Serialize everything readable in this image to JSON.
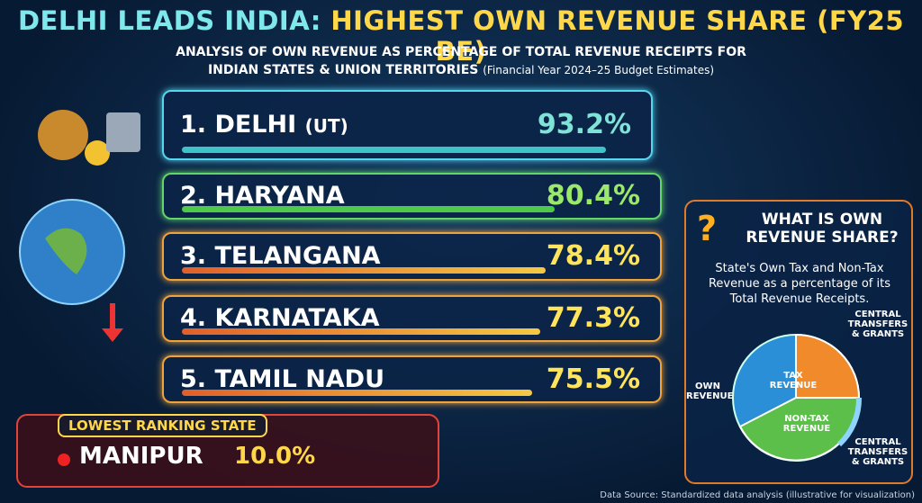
{
  "header": {
    "title_part1": "DELHI LEADS INDIA:",
    "title_part2": "HIGHEST OWN REVENUE SHARE (FY25 BE)",
    "subtitle_line1": "ANALYSIS OF OWN REVENUE AS PERCENTAGE OF TOTAL REVENUE RECEIPTS FOR",
    "subtitle_line2": "INDIAN STATES & UNION TERRITORIES",
    "subtitle_note": "(Financial Year 2024–25 Budget Estimates)"
  },
  "rankings": [
    {
      "rank": "1.",
      "name": "DELHI",
      "qualifier": "(UT)",
      "value": 93.2,
      "value_label": "93.2%"
    },
    {
      "rank": "2.",
      "name": "HARYANA",
      "value": 80.4,
      "value_label": "80.4%"
    },
    {
      "rank": "3.",
      "name": "TELANGANA",
      "value": 78.4,
      "value_label": "78.4%"
    },
    {
      "rank": "4.",
      "name": "KARNATAKA",
      "value": 77.3,
      "value_label": "77.3%"
    },
    {
      "rank": "5.",
      "name": "TAMIL NADU",
      "value": 75.5,
      "value_label": "75.5%"
    }
  ],
  "lowest": {
    "heading": "LOWEST RANKING STATE",
    "name": "MANIPUR",
    "value": 10.0,
    "value_label": "10.0%"
  },
  "explainer": {
    "heading": "WHAT IS OWN REVENUE SHARE?",
    "description": "State's Own Tax and Non-Tax Revenue as a percentage of its Total Revenue Receipts.",
    "labels": {
      "tax": "TAX REVENUE",
      "non_tax": "NON-TAX REVENUE",
      "own": "OWN REVENUE",
      "central_top": "CENTRAL TRANSFERS & GRANTS",
      "central_bottom": "CENTRAL TRANSFERS & GRANTS"
    }
  },
  "footer": {
    "source": "Data Source: Standardized data analysis (illustrative for visualization)"
  }
}
